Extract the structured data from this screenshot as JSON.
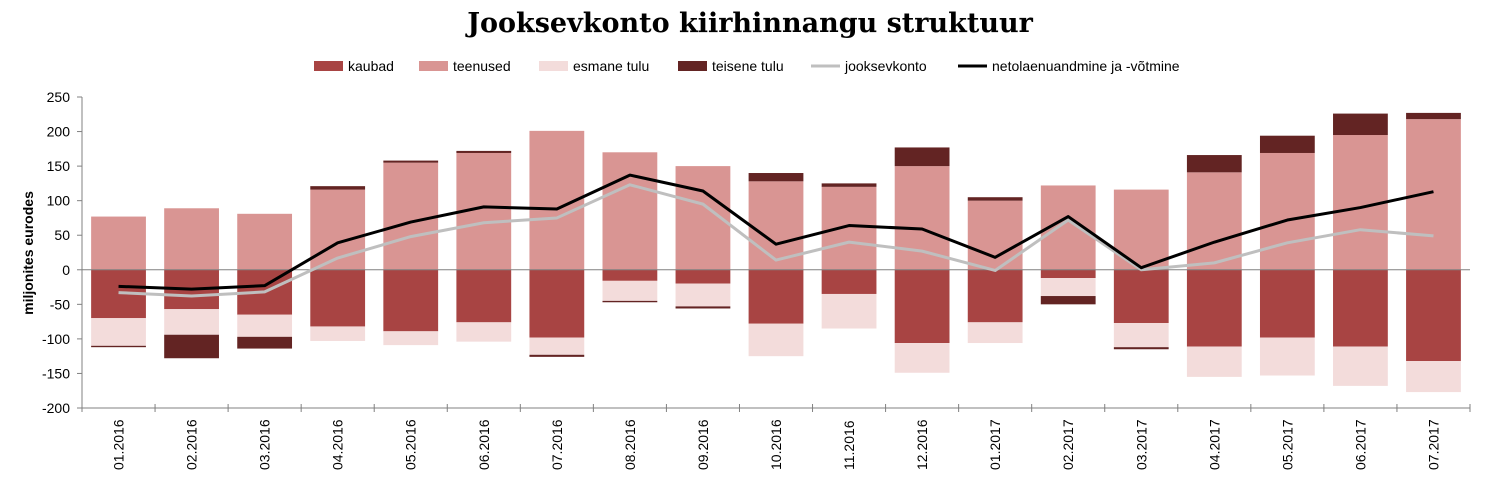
{
  "chart_data": {
    "type": "bar",
    "stacked": true,
    "title": "Jooksevkonto kiirhinnangu struktuur",
    "ylabel": "miljonites eurodes",
    "xlabel": "",
    "ylim": [
      -200,
      250
    ],
    "yticks": [
      -200,
      -150,
      -100,
      -50,
      0,
      50,
      100,
      150,
      200,
      250
    ],
    "grid": false,
    "legend_position": "top",
    "categories": [
      "01.2016",
      "02.2016",
      "03.2016",
      "04.2016",
      "05.2016",
      "06.2016",
      "07.2016",
      "08.2016",
      "09.2016",
      "10.2016",
      "11.2016",
      "12.2016",
      "01.2017",
      "02.2017",
      "03.2017",
      "04.2017",
      "05.2017",
      "06.2017",
      "07.2017"
    ],
    "series": [
      {
        "name": "kaubad",
        "kind": "bar",
        "color": "#a84443",
        "values": [
          -70,
          -57,
          -65,
          -82,
          -89,
          -76,
          -98,
          -16,
          -20,
          -78,
          -35,
          -106,
          -76,
          -12,
          -77,
          -111,
          -98,
          -111,
          -132
        ]
      },
      {
        "name": "teenused",
        "kind": "bar",
        "color": "#d99593",
        "values": [
          77,
          89,
          81,
          116,
          155,
          169,
          201,
          170,
          150,
          128,
          120,
          150,
          100,
          122,
          116,
          141,
          169,
          195,
          218
        ]
      },
      {
        "name": "esmane tulu",
        "kind": "bar",
        "color": "#f3dcdb",
        "values": [
          -40,
          -37,
          -32,
          -21,
          -20,
          -28,
          -25,
          -29,
          -33,
          -47,
          -50,
          -43,
          -30,
          -26,
          -35,
          -44,
          -55,
          -57,
          -45
        ]
      },
      {
        "name": "teisene tulu",
        "kind": "bar",
        "color": "#632423",
        "values": [
          -2,
          -34,
          -17,
          5,
          3,
          3,
          -3,
          -2,
          -3,
          12,
          5,
          27,
          5,
          -12,
          -3,
          25,
          25,
          31,
          9
        ]
      },
      {
        "name": "jooksevkonto",
        "kind": "line",
        "color": "#bfbfbf",
        "values": [
          -33,
          -38,
          -32,
          17,
          48,
          68,
          75,
          123,
          95,
          14,
          40,
          27,
          -1,
          72,
          0,
          10,
          39,
          58,
          49
        ]
      },
      {
        "name": "netolaenuandmine ja -võtmine",
        "kind": "line",
        "color": "#000000",
        "values": [
          -24,
          -28,
          -23,
          39,
          69,
          91,
          88,
          137,
          114,
          37,
          64,
          59,
          18,
          77,
          3,
          40,
          72,
          90,
          113
        ]
      }
    ]
  }
}
